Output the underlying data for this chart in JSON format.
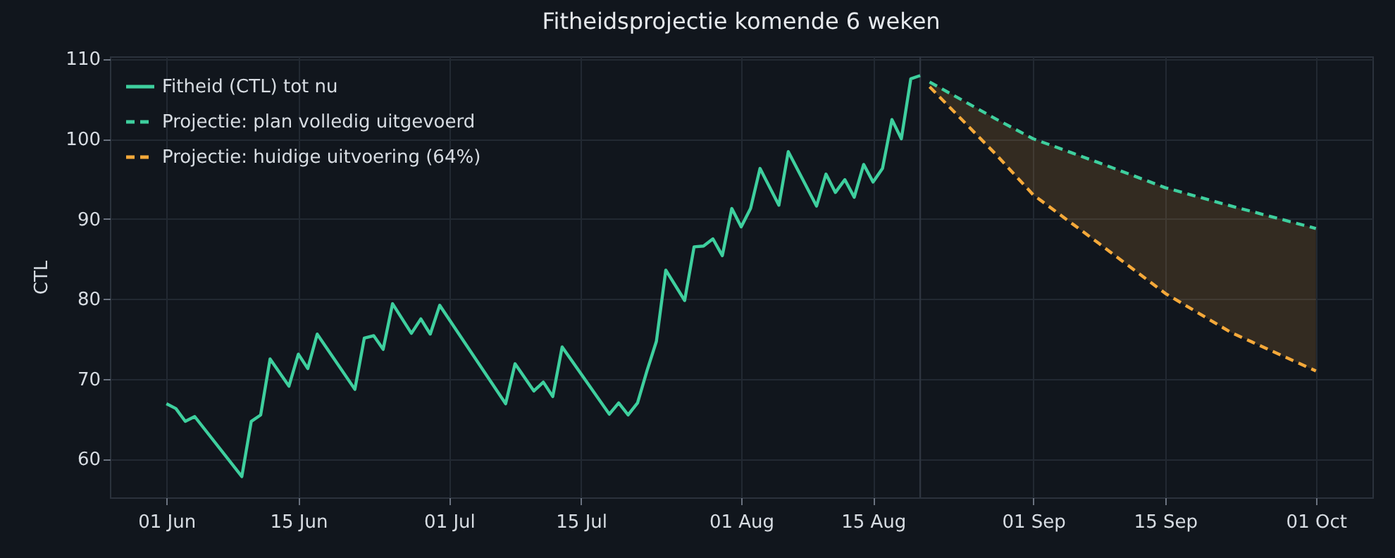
{
  "chart_data": {
    "type": "line",
    "title": "Fitheidsprojectie komende 6 weken",
    "ylabel": "CTL",
    "xlim": [
      "--05-26",
      "--10-07"
    ],
    "ylim": [
      55.2,
      110.3
    ],
    "yticks": [
      60,
      70,
      80,
      90,
      100,
      110
    ],
    "xticks": [
      {
        "value": "--06-01",
        "label": "01 Jun"
      },
      {
        "value": "--06-15",
        "label": "15 Jun"
      },
      {
        "value": "--07-01",
        "label": "01 Jul"
      },
      {
        "value": "--07-15",
        "label": "15 Jul"
      },
      {
        "value": "--08-01",
        "label": "01 Aug"
      },
      {
        "value": "--08-15",
        "label": "15 Aug"
      },
      {
        "value": "--09-01",
        "label": "01 Sep"
      },
      {
        "value": "--09-15",
        "label": "15 Sep"
      },
      {
        "value": "--10-01",
        "label": "01 Oct"
      }
    ],
    "grid": true,
    "legend": "top left",
    "ref_lines": [
      {
        "axis": "x",
        "value": "--08-20",
        "color": "#2e3540"
      }
    ],
    "series": [
      {
        "name": "Fitheid (CTL) tot nu",
        "color": "#3ecf9e",
        "line_style": "solid",
        "x": [
          "--06-01",
          "--06-02",
          "--06-03",
          "--06-04",
          "--06-09",
          "--06-10",
          "--06-11",
          "--06-12",
          "--06-14",
          "--06-15",
          "--06-16",
          "--06-17",
          "--06-21",
          "--06-22",
          "--06-23",
          "--06-24",
          "--06-25",
          "--06-27",
          "--06-28",
          "--06-29",
          "--06-30",
          "--07-07",
          "--07-08",
          "--07-10",
          "--07-11",
          "--07-12",
          "--07-13",
          "--07-18",
          "--07-19",
          "--07-20",
          "--07-21",
          "--07-22",
          "--07-23",
          "--07-24",
          "--07-26",
          "--07-27",
          "--07-28",
          "--07-29",
          "--07-30",
          "--07-31",
          "--08-01",
          "--08-02",
          "--08-03",
          "--08-05",
          "--08-06",
          "--08-09",
          "--08-10",
          "--08-11",
          "--08-12",
          "--08-13",
          "--08-14",
          "--08-15",
          "--08-16",
          "--08-17",
          "--08-18",
          "--08-19",
          "--08-20"
        ],
        "values": [
          66.9,
          66.3,
          64.7,
          65.3,
          57.8,
          64.7,
          65.5,
          72.5,
          69.1,
          73.1,
          71.3,
          75.6,
          68.7,
          75.1,
          75.4,
          73.7,
          79.4,
          75.7,
          77.5,
          75.6,
          79.2,
          66.9,
          71.9,
          68.5,
          69.6,
          67.8,
          74.0,
          65.6,
          67.0,
          65.5,
          67.0,
          71.0,
          74.7,
          83.6,
          79.8,
          86.5,
          86.6,
          87.5,
          85.4,
          91.3,
          89.0,
          91.3,
          96.3,
          91.7,
          98.4,
          91.6,
          95.6,
          93.3,
          94.9,
          92.7,
          96.8,
          94.6,
          96.3,
          102.4,
          100.0,
          107.5,
          107.9
        ]
      },
      {
        "name": "Projectie: plan volledig uitgevoerd",
        "color": "#3ecf9e",
        "line_style": "dashed",
        "x": [
          "--08-21",
          "--08-28",
          "--09-01",
          "--09-08",
          "--09-15",
          "--09-22",
          "--10-01"
        ],
        "values": [
          107.1,
          102.5,
          100.0,
          97.0,
          93.9,
          91.6,
          88.8
        ]
      },
      {
        "name": "Projectie: huidige uitvoering (64%)",
        "color": "#f5a93a",
        "line_style": "dashed",
        "x": [
          "--08-21",
          "--08-28",
          "--09-01",
          "--09-08",
          "--09-15",
          "--09-22",
          "--10-01"
        ],
        "values": [
          106.5,
          98.1,
          93.0,
          86.9,
          80.7,
          75.8,
          71.0
        ],
        "lower": [
          106.5,
          98.1,
          93.0,
          86.9,
          80.7,
          75.8,
          71.0
        ],
        "upper": [
          107.1,
          102.5,
          100.0,
          97.0,
          93.9,
          91.6,
          88.8
        ]
      }
    ]
  }
}
